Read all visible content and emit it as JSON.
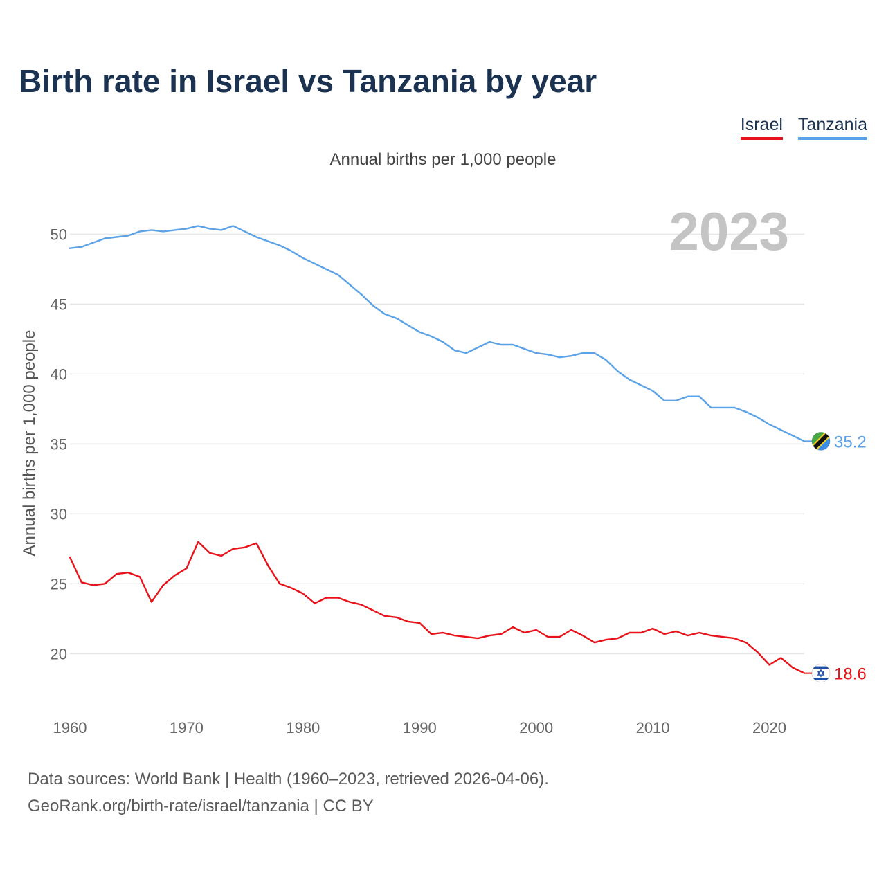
{
  "header": {
    "title": "Birth rate in Israel vs Tanzania by year",
    "subtitle": "Annual births per 1,000 people"
  },
  "legend": [
    {
      "label": "Israel",
      "color": "#e8131a"
    },
    {
      "label": "Tanzania",
      "color": "#5ca2e6"
    }
  ],
  "footer": {
    "line1": "Data sources: World Bank | Health (1960–2023, retrieved 2026-04-06).",
    "line2": "GeoRank.org/birth-rate/israel/tanzania | CC BY"
  },
  "chart_data": {
    "type": "line",
    "title": "Birth rate in Israel vs Tanzania by year",
    "xlabel": "",
    "ylabel": "Annual births per 1,000 people",
    "year_label": "2023",
    "xlim": [
      1960,
      2023
    ],
    "ylim": [
      16.5,
      52.5
    ],
    "xticks": [
      1960,
      1970,
      1980,
      1990,
      2000,
      2010,
      2020
    ],
    "yticks": [
      20,
      25,
      30,
      35,
      40,
      45,
      50
    ],
    "grid": true,
    "legend_position": "top-right",
    "x": [
      1960,
      1961,
      1962,
      1963,
      1964,
      1965,
      1966,
      1967,
      1968,
      1969,
      1970,
      1971,
      1972,
      1973,
      1974,
      1975,
      1976,
      1977,
      1978,
      1979,
      1980,
      1981,
      1982,
      1983,
      1984,
      1985,
      1986,
      1987,
      1988,
      1989,
      1990,
      1991,
      1992,
      1993,
      1994,
      1995,
      1996,
      1997,
      1998,
      1999,
      2000,
      2001,
      2002,
      2003,
      2004,
      2005,
      2006,
      2007,
      2008,
      2009,
      2010,
      2011,
      2012,
      2013,
      2014,
      2015,
      2016,
      2017,
      2018,
      2019,
      2020,
      2021,
      2022,
      2023
    ],
    "series": [
      {
        "name": "Israel",
        "color": "#e8131a",
        "end_label": "18.6",
        "flag": "israel-flag-icon",
        "values": [
          26.9,
          25.1,
          24.9,
          25.0,
          25.7,
          25.8,
          25.5,
          23.7,
          24.9,
          25.6,
          26.1,
          28.0,
          27.2,
          27.0,
          27.5,
          27.6,
          27.9,
          26.3,
          25.0,
          24.7,
          24.3,
          23.6,
          24.0,
          24.0,
          23.7,
          23.5,
          23.1,
          22.7,
          22.6,
          22.3,
          22.2,
          21.4,
          21.5,
          21.3,
          21.2,
          21.1,
          21.3,
          21.4,
          21.9,
          21.5,
          21.7,
          21.2,
          21.2,
          21.7,
          21.3,
          20.8,
          21.0,
          21.1,
          21.5,
          21.5,
          21.8,
          21.4,
          21.6,
          21.3,
          21.5,
          21.3,
          21.2,
          21.1,
          20.8,
          20.1,
          19.2,
          19.7,
          19.0,
          18.6
        ]
      },
      {
        "name": "Tanzania",
        "color": "#5ca2e6",
        "end_label": "35.2",
        "flag": "tanzania-flag-icon",
        "values": [
          49.0,
          49.1,
          49.4,
          49.7,
          49.8,
          49.9,
          50.2,
          50.3,
          50.2,
          50.3,
          50.4,
          50.6,
          50.4,
          50.3,
          50.6,
          50.2,
          49.8,
          49.5,
          49.2,
          48.8,
          48.3,
          47.9,
          47.5,
          47.1,
          46.4,
          45.7,
          44.9,
          44.3,
          44.0,
          43.5,
          43.0,
          42.7,
          42.3,
          41.7,
          41.5,
          41.9,
          42.3,
          42.1,
          42.1,
          41.8,
          41.5,
          41.4,
          41.2,
          41.3,
          41.5,
          41.5,
          41.0,
          40.2,
          39.6,
          39.2,
          38.8,
          38.1,
          38.1,
          38.4,
          38.4,
          37.6,
          37.6,
          37.6,
          37.3,
          36.9,
          36.4,
          36.0,
          35.6,
          35.2
        ]
      }
    ]
  }
}
